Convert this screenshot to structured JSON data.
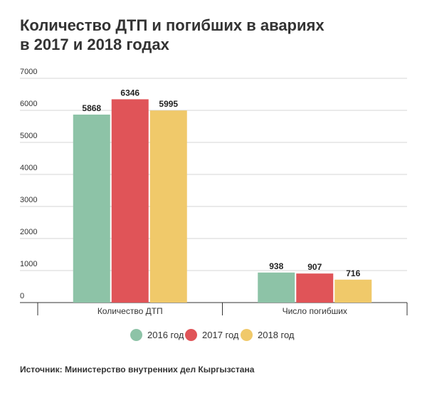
{
  "title_lines": [
    "Количество ДТП и погибших в авариях",
    "в 2017 и 2018 годах"
  ],
  "source": "Источник: Министерство внутренних дел Кыргызстана",
  "chart_data": {
    "type": "bar",
    "categories": [
      "Количество ДТП",
      "Число погибших"
    ],
    "series": [
      {
        "name": "2016 год",
        "values": [
          5868,
          938
        ],
        "color": "#8dc3a7"
      },
      {
        "name": "2017 год",
        "values": [
          6346,
          907
        ],
        "color": "#e05458"
      },
      {
        "name": "2018 год",
        "values": [
          5995,
          716
        ],
        "color": "#f0c96a"
      }
    ],
    "ylim": [
      0,
      7000
    ],
    "yticks": [
      "0",
      "1000",
      "2000",
      "3000",
      "4000",
      "5000",
      "6000",
      "7000"
    ],
    "grid": true,
    "legend_position": "bottom"
  }
}
